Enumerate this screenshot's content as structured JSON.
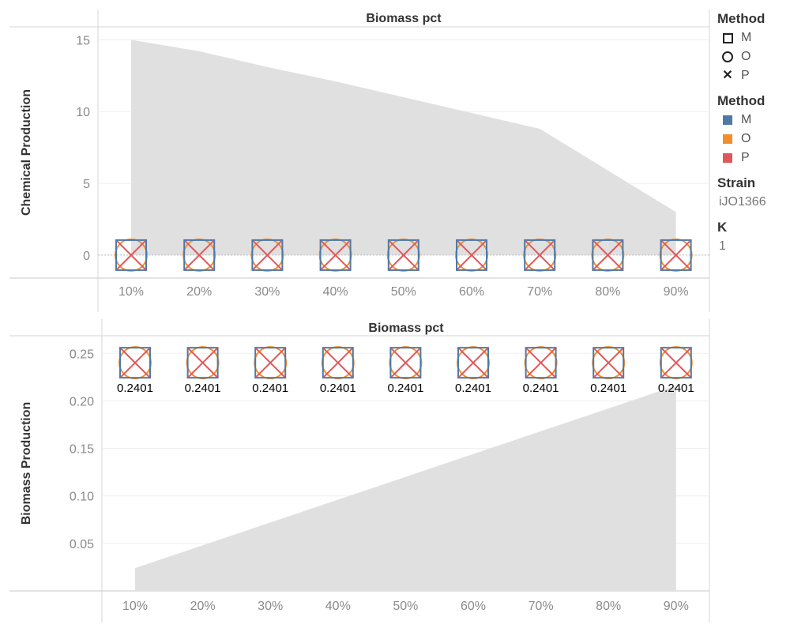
{
  "chart_data": [
    {
      "type": "area",
      "title": "Biomass pct",
      "ylabel": "Chemical Production",
      "categories": [
        "10%",
        "20%",
        "30%",
        "40%",
        "50%",
        "60%",
        "70%",
        "80%",
        "90%"
      ],
      "area_values": [
        15.0,
        14.2,
        13.1,
        12.1,
        11.0,
        9.9,
        8.8,
        5.9,
        3.0
      ],
      "points": {
        "M": [
          0,
          0,
          0,
          0,
          0,
          0,
          0,
          0,
          0
        ],
        "O": [
          0,
          0,
          0,
          0,
          0,
          0,
          0,
          0,
          0
        ],
        "P": [
          0,
          0,
          0,
          0,
          0,
          0,
          0,
          0,
          0
        ]
      },
      "yticks": [
        0,
        5,
        10,
        15
      ],
      "ytick_labels": [
        "0",
        "5",
        "10",
        "15"
      ],
      "ylim": [
        -1.6,
        15.9
      ],
      "grid": true
    },
    {
      "type": "area",
      "title": "Biomass pct",
      "ylabel": "Biomass Production",
      "categories": [
        "10%",
        "20%",
        "30%",
        "40%",
        "50%",
        "60%",
        "70%",
        "80%",
        "90%"
      ],
      "area_values": [
        0.024,
        0.048,
        0.072,
        0.096,
        0.12,
        0.144,
        0.168,
        0.192,
        0.216
      ],
      "points": {
        "M": [
          0.2401,
          0.2401,
          0.2401,
          0.2401,
          0.2401,
          0.2401,
          0.2401,
          0.2401,
          0.2401
        ],
        "O": [
          0.2401,
          0.2401,
          0.2401,
          0.2401,
          0.2401,
          0.2401,
          0.2401,
          0.2401,
          0.2401
        ],
        "P": [
          0.2401,
          0.2401,
          0.2401,
          0.2401,
          0.2401,
          0.2401,
          0.2401,
          0.2401,
          0.2401
        ]
      },
      "data_labels": [
        "0.2401",
        "0.2401",
        "0.2401",
        "0.2401",
        "0.2401",
        "0.2401",
        "0.2401",
        "0.2401",
        "0.2401"
      ],
      "yticks": [
        0.05,
        0.1,
        0.15,
        0.2,
        0.25
      ],
      "ytick_labels": [
        "0.05",
        "0.10",
        "0.15",
        "0.20",
        "0.25"
      ],
      "ylim": [
        0.0,
        0.2685
      ],
      "grid": true
    }
  ],
  "colors": {
    "area": "#e0e0e0",
    "M": "#4e79a7",
    "O": "#f28e2b",
    "P": "#e15759"
  },
  "legend": {
    "shape_title": "Method",
    "shape_items": [
      {
        "label": "M",
        "icon": "square-shape-icon"
      },
      {
        "label": "O",
        "icon": "circle-shape-icon"
      },
      {
        "label": "P",
        "icon": "x-shape-icon"
      }
    ],
    "color_title": "Method",
    "color_items": [
      {
        "label": "M",
        "color": "#4e79a7"
      },
      {
        "label": "O",
        "color": "#f28e2b"
      },
      {
        "label": "P",
        "color": "#e15759"
      }
    ],
    "strain_title": "Strain",
    "strain_value": "iJO1366",
    "k_title": "K",
    "k_value": "1"
  }
}
